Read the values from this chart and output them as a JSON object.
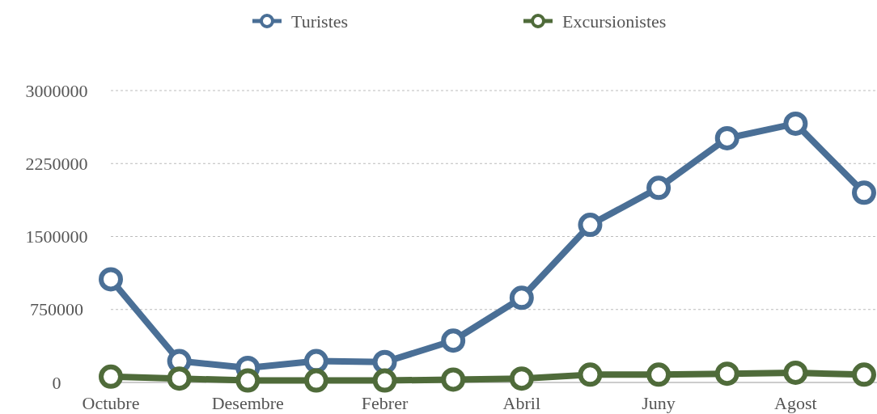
{
  "chart_data": {
    "type": "line",
    "categories": [
      "Octubre",
      null,
      "Desembre",
      null,
      "Febrer",
      null,
      "Abril",
      null,
      "Juny",
      null,
      "Agost",
      null
    ],
    "series": [
      {
        "name": "Turistes",
        "color": "#4a6f96",
        "values": [
          1060000,
          220000,
          150000,
          220000,
          210000,
          430000,
          870000,
          1620000,
          2000000,
          2510000,
          2660000,
          1950000
        ]
      },
      {
        "name": "Excursionistes",
        "color": "#4f6b3a",
        "values": [
          60000,
          40000,
          20000,
          20000,
          20000,
          30000,
          40000,
          80000,
          80000,
          90000,
          100000,
          80000
        ]
      }
    ],
    "ylim": [
      0,
      3000000
    ],
    "yticks": [
      0,
      750000,
      1500000,
      2250000,
      3000000
    ],
    "grid": "y",
    "legend": "top",
    "marker": "circle",
    "line_style": "solid"
  }
}
